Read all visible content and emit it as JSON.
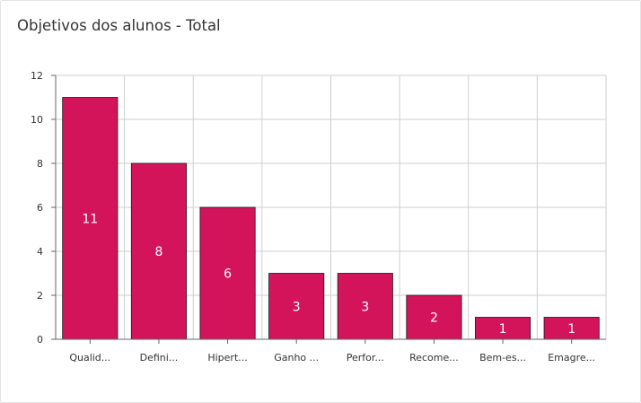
{
  "card": {
    "title": "Objetivos dos alunos - Total"
  },
  "chart_data": {
    "type": "bar",
    "title": "",
    "xlabel": "",
    "ylabel": "",
    "categories": [
      "Qualid...",
      "Defini...",
      "Hipert...",
      "Ganho ...",
      "Perfor...",
      "Recome...",
      "Bem-es...",
      "Emagre..."
    ],
    "values": [
      11,
      8,
      6,
      3,
      3,
      2,
      1,
      1
    ],
    "ylim": [
      0,
      12
    ],
    "yticks": [
      "0",
      "2",
      "4",
      "6",
      "8",
      "10",
      "12"
    ],
    "data_labels": [
      "11",
      "8",
      "6",
      "3",
      "3",
      "2",
      "1",
      "1"
    ],
    "bar_color": "#d4145a",
    "grid": true,
    "legend": "none"
  }
}
